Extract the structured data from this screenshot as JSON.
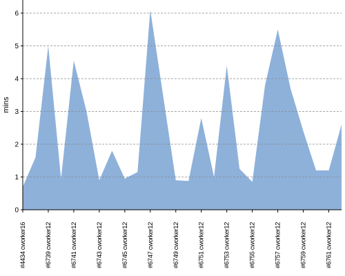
{
  "chart_data": {
    "type": "area",
    "y_label": "mins",
    "categories": [
      "#4434 cworker16",
      null,
      "#6739 cworker12",
      null,
      "#6741 cworker12",
      null,
      "#6743 cworker12",
      null,
      "#6745 cworker12",
      null,
      "#6747 cworker12",
      null,
      "#6749 cworker12",
      null,
      "#6751 cworker12",
      null,
      "#6753 cworker12",
      null,
      "#6755 cworker12",
      null,
      "#6757 cworker12",
      null,
      "#6759 cworker12",
      null,
      "#6761 cworker12",
      null
    ],
    "values": [
      0.7,
      1.6,
      5.0,
      0.95,
      4.55,
      3.0,
      0.9,
      1.8,
      0.95,
      1.15,
      6.1,
      3.5,
      0.9,
      0.88,
      2.8,
      1.0,
      4.4,
      1.25,
      0.85,
      3.8,
      5.5,
      3.7,
      2.4,
      1.2,
      1.2,
      2.6
    ],
    "color": "#8eb1da",
    "ylim": [
      0,
      6.4
    ],
    "yticks": [
      0,
      1,
      2,
      3,
      4,
      5,
      6
    ],
    "grid": true
  }
}
